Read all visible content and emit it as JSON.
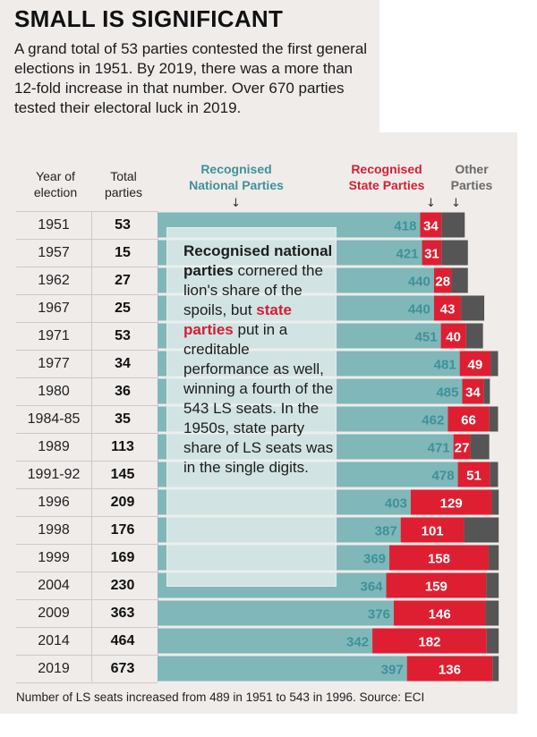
{
  "title": "SMALL IS SIGNIFICANT",
  "intro": "A grand total of 53 parties contested the first general elections in 1951. By 2019, there was a more than 12-fold increase in that number. Over 670 parties tested their electoral luck in 2019.",
  "headers": {
    "year_line1": "Year of",
    "year_line2": "election",
    "total_line1": "Total",
    "total_line2": "parties",
    "national_line1": "Recognised",
    "national_line2": "National Parties",
    "state_line1": "Recognised",
    "state_line2": "State Parties",
    "other_line1": "Other",
    "other_line2": "Parties"
  },
  "callout": {
    "p1": "Recognised national parties",
    "p2": "cornered the lion's share of the spoils, but",
    "p3": "state parties",
    "p4": "put in a creditable performance as well, winning a fourth of the 543 LS seats. In the 1950s, state party share of LS seats was in the single digits."
  },
  "footer": "Number of LS seats increased from 489 in 1951 to 543 in 1996. Source: ECI",
  "colors": {
    "national": "#80b7b9",
    "state": "#de1f32",
    "other": "#555555",
    "national_label": "#3f9199",
    "background": "#efecea"
  },
  "chart_data": {
    "type": "bar",
    "stacked": true,
    "orientation": "horizontal",
    "categories": [
      "1951",
      "1957",
      "1962",
      "1967",
      "1971",
      "1977",
      "1980",
      "1984-85",
      "1989",
      "1991-92",
      "1996",
      "1998",
      "1999",
      "2004",
      "2009",
      "2014",
      "2019"
    ],
    "total_parties": [
      53,
      15,
      27,
      25,
      53,
      34,
      36,
      35,
      113,
      145,
      209,
      176,
      169,
      230,
      363,
      464,
      673
    ],
    "series": [
      {
        "name": "Recognised National Parties",
        "values": [
          418,
          421,
          440,
          440,
          451,
          481,
          485,
          462,
          471,
          478,
          403,
          387,
          369,
          364,
          376,
          342,
          397
        ]
      },
      {
        "name": "Recognised State Parties",
        "values": [
          34,
          31,
          28,
          43,
          40,
          49,
          34,
          66,
          27,
          51,
          129,
          101,
          158,
          159,
          146,
          182,
          136
        ]
      },
      {
        "name": "Other Parties",
        "values": [
          37,
          42,
          26,
          37,
          27,
          12,
          10,
          14,
          30,
          13,
          11,
          55,
          16,
          20,
          21,
          19,
          10
        ]
      }
    ],
    "seats_total": [
      489,
      494,
      494,
      520,
      518,
      542,
      529,
      542,
      528,
      542,
      543,
      543,
      543,
      543,
      543,
      543,
      543
    ]
  }
}
